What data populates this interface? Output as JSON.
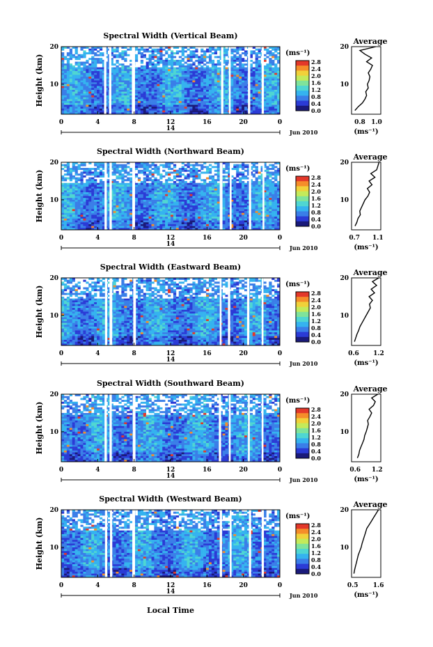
{
  "x_axis_label": "Local Time",
  "colorbar": {
    "unit_label": "(ms⁻¹)",
    "ticks": [
      "0.0",
      "0.4",
      "0.8",
      "1.2",
      "1.6",
      "2.0",
      "2.4",
      "2.8"
    ],
    "colors": [
      "#1a1a7a",
      "#2b3bd6",
      "#3a7ee8",
      "#35b3ef",
      "#4fd6d2",
      "#7fe39b",
      "#c4ea5a",
      "#f1d13a",
      "#f58d2a",
      "#e3382a"
    ]
  },
  "chart_data": [
    {
      "type": "heatmap",
      "title": "Spectral Width (Vertical Beam)",
      "ylabel": "Height (km)",
      "x_ticks": [
        "0",
        "4",
        "8",
        "12",
        "16",
        "20",
        "0"
      ],
      "y_ticks": [
        "20",
        "10"
      ],
      "xlim": [
        0,
        24
      ],
      "ylim": [
        2,
        20
      ],
      "date_tick": "14",
      "date_label": "Jun 2010",
      "gaps_hours": [
        [
          4.7,
          4.95
        ],
        [
          5.25,
          5.5
        ],
        [
          7.75,
          8.1
        ],
        [
          17.55,
          17.8
        ],
        [
          18.4,
          18.6
        ],
        [
          20.5,
          20.75
        ],
        [
          22.0,
          22.25
        ]
      ],
      "average_profile": {
        "title": "Average",
        "xlabel": "(ms⁻¹)",
        "x_ticks": [
          "0.8",
          "1.0"
        ],
        "y_ticks": [
          "20",
          "10"
        ],
        "xlim": [
          0.7,
          1.05
        ],
        "heights": [
          3,
          4,
          5,
          6,
          7,
          8,
          9,
          10,
          11,
          12,
          13,
          14,
          15,
          16,
          17,
          18,
          19,
          20
        ],
        "values": [
          0.74,
          0.78,
          0.83,
          0.86,
          0.88,
          0.87,
          0.9,
          0.89,
          0.91,
          0.92,
          0.9,
          0.93,
          0.95,
          0.88,
          0.94,
          0.86,
          0.8,
          0.99
        ]
      }
    },
    {
      "type": "heatmap",
      "title": "Spectral Width (Northward Beam)",
      "ylabel": "Height (km)",
      "x_ticks": [
        "0",
        "4",
        "8",
        "12",
        "16",
        "20",
        "0"
      ],
      "y_ticks": [
        "20",
        "10"
      ],
      "xlim": [
        0,
        24
      ],
      "ylim": [
        2,
        20
      ],
      "date_tick": "14",
      "date_label": "Jun 2010",
      "gaps_hours": [
        [
          4.75,
          5.0
        ],
        [
          5.3,
          5.55
        ],
        [
          7.8,
          8.1
        ],
        [
          17.4,
          17.7
        ],
        [
          18.5,
          18.7
        ],
        [
          20.6,
          20.85
        ],
        [
          22.1,
          22.3
        ]
      ],
      "average_profile": {
        "title": "Average",
        "xlabel": "(ms⁻¹)",
        "x_ticks": [
          "0.7",
          "1.1"
        ],
        "y_ticks": [
          "20",
          "10"
        ],
        "xlim": [
          0.65,
          1.15
        ],
        "heights": [
          3,
          4,
          5,
          6,
          7,
          8,
          9,
          10,
          11,
          12,
          13,
          14,
          15,
          16,
          17,
          18,
          19,
          20
        ],
        "values": [
          0.71,
          0.74,
          0.76,
          0.8,
          0.79,
          0.82,
          0.85,
          0.88,
          0.93,
          0.96,
          0.92,
          1.0,
          0.95,
          1.05,
          0.98,
          1.08,
          1.1,
          1.12
        ]
      }
    },
    {
      "type": "heatmap",
      "title": "Spectral Width (Eastward Beam)",
      "ylabel": "Height (km)",
      "x_ticks": [
        "0",
        "4",
        "8",
        "12",
        "16",
        "20",
        "0"
      ],
      "y_ticks": [
        "20",
        "10"
      ],
      "xlim": [
        0,
        24
      ],
      "ylim": [
        2,
        20
      ],
      "date_tick": "14",
      "date_label": "Jun 2010",
      "gaps_hours": [
        [
          4.8,
          5.05
        ],
        [
          5.3,
          5.6
        ],
        [
          7.9,
          8.2
        ],
        [
          17.4,
          17.6
        ],
        [
          18.3,
          18.55
        ],
        [
          20.4,
          20.65
        ],
        [
          22.0,
          22.2
        ]
      ],
      "average_profile": {
        "title": "Average",
        "xlabel": "(ms⁻¹)",
        "x_ticks": [
          "0.6",
          "1.2"
        ],
        "y_ticks": [
          "20",
          "10"
        ],
        "xlim": [
          0.55,
          1.25
        ],
        "heights": [
          3,
          4,
          5,
          6,
          7,
          8,
          9,
          10,
          11,
          12,
          13,
          14,
          15,
          16,
          17,
          18,
          19,
          20
        ],
        "values": [
          0.62,
          0.65,
          0.68,
          0.72,
          0.75,
          0.8,
          0.85,
          0.9,
          0.95,
          1.0,
          0.98,
          1.05,
          0.97,
          1.1,
          1.02,
          1.15,
          1.05,
          1.2
        ]
      }
    },
    {
      "type": "heatmap",
      "title": "Spectral Width (Southward Beam)",
      "ylabel": "Height (km)",
      "x_ticks": [
        "0",
        "4",
        "8",
        "12",
        "16",
        "20",
        "0"
      ],
      "y_ticks": [
        "20",
        "10"
      ],
      "xlim": [
        0,
        24
      ],
      "ylim": [
        2,
        20
      ],
      "date_tick": "14",
      "date_label": "Jun 2010",
      "gaps_hours": [
        [
          4.75,
          5.0
        ],
        [
          5.3,
          5.55
        ],
        [
          7.85,
          8.15
        ],
        [
          17.3,
          17.55
        ],
        [
          18.4,
          18.6
        ],
        [
          20.5,
          20.7
        ],
        [
          22.0,
          22.2
        ]
      ],
      "average_profile": {
        "title": "Average",
        "xlabel": "(ms⁻¹)",
        "x_ticks": [
          "0.6",
          "1.2"
        ],
        "y_ticks": [
          "20",
          "10"
        ],
        "xlim": [
          0.5,
          1.3
        ],
        "heights": [
          3,
          4,
          5,
          6,
          7,
          8,
          9,
          10,
          11,
          12,
          13,
          14,
          15,
          16,
          17,
          18,
          19,
          20
        ],
        "values": [
          0.66,
          0.7,
          0.72,
          0.76,
          0.8,
          0.84,
          0.86,
          0.9,
          0.93,
          0.96,
          0.94,
          1.0,
          1.05,
          0.98,
          1.1,
          1.15,
          1.05,
          1.22
        ]
      }
    },
    {
      "type": "heatmap",
      "title": "Spectral Width (Westward Beam)",
      "ylabel": "Height (km)",
      "x_ticks": [
        "0",
        "4",
        "8",
        "12",
        "16",
        "20",
        "0"
      ],
      "y_ticks": [
        "20",
        "10"
      ],
      "xlim": [
        0,
        24
      ],
      "ylim": [
        2,
        20
      ],
      "date_tick": "14",
      "date_label": "Jun 2010",
      "gaps_hours": [
        [
          4.8,
          5.05
        ],
        [
          5.35,
          5.6
        ],
        [
          7.8,
          8.1
        ],
        [
          17.4,
          17.65
        ],
        [
          18.5,
          18.7
        ],
        [
          20.6,
          20.85
        ],
        [
          22.0,
          22.25
        ]
      ],
      "average_profile": {
        "title": "Average",
        "xlabel": "(ms⁻¹)",
        "x_ticks": [
          "0.5",
          "1.6"
        ],
        "y_ticks": [
          "20",
          "10"
        ],
        "xlim": [
          0.45,
          1.7
        ],
        "heights": [
          3,
          4,
          5,
          6,
          7,
          8,
          9,
          10,
          11,
          12,
          13,
          14,
          15,
          16,
          17,
          18,
          19,
          20
        ],
        "values": [
          0.55,
          0.58,
          0.62,
          0.66,
          0.7,
          0.74,
          0.8,
          0.86,
          0.9,
          0.95,
          1.0,
          1.05,
          1.1,
          1.2,
          1.3,
          1.4,
          1.5,
          1.6
        ]
      }
    }
  ]
}
